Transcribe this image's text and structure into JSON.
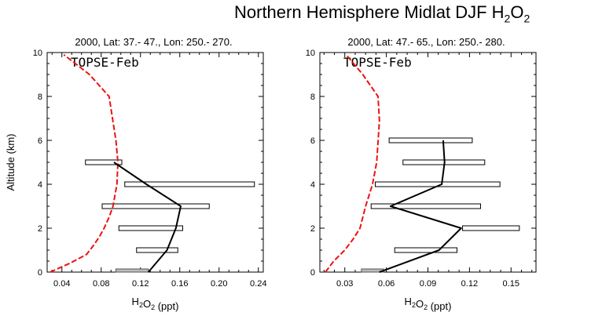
{
  "page_title": {
    "main": "Northern Hemisphere Midlat DJF H",
    "sub": "2",
    "tail": "O",
    "sub2": "2"
  },
  "chart_data": [
    {
      "type": "line",
      "title": "2000, Lat: 37.- 47., Lon: 250.- 270.",
      "legend_label": "TOPSE-Feb",
      "ylabel": "Altitude (km)",
      "xlabel": {
        "main": "H",
        "sub": "2",
        "mid": "O",
        "sub2": "2",
        "tail": " (ppt)"
      },
      "xlim": [
        0.025,
        0.245
      ],
      "ylim": [
        0,
        10
      ],
      "xticks": [
        0.04,
        0.08,
        0.12,
        0.16,
        0.2,
        0.24
      ],
      "xtick_labels": [
        "0.04",
        "0.08",
        "0.12",
        "0.16",
        "0.20",
        "0.24"
      ],
      "yticks": [
        0,
        2,
        4,
        6,
        8,
        10
      ],
      "ytick_labels": [
        "0",
        "2",
        "4",
        "6",
        "8",
        "10"
      ],
      "series": [
        {
          "name": "model",
          "style": "dashed",
          "color": "#ee1111",
          "x": [
            0.028,
            0.048,
            0.065,
            0.072,
            0.078,
            0.083,
            0.088,
            0.092,
            0.096,
            0.097,
            0.095,
            0.088,
            0.068,
            0.042
          ],
          "y": [
            0,
            0.4,
            0.8,
            1.2,
            1.6,
            2.0,
            2.5,
            3.0,
            4.0,
            5.0,
            6.0,
            8.0,
            9.0,
            9.9
          ]
        },
        {
          "name": "observations",
          "style": "solid",
          "color": "#000000",
          "x": [
            0.128,
            0.147,
            0.156,
            0.161,
            0.126,
            0.093
          ],
          "y": [
            0,
            1,
            2,
            3,
            4,
            5
          ]
        }
      ],
      "ranges": [
        {
          "y": 0,
          "min": 0.095,
          "max": 0.128
        },
        {
          "y": 1,
          "min": 0.116,
          "max": 0.158
        },
        {
          "y": 2,
          "min": 0.098,
          "max": 0.163
        },
        {
          "y": 3,
          "min": 0.081,
          "max": 0.19
        },
        {
          "y": 4,
          "min": 0.104,
          "max": 0.236
        },
        {
          "y": 5,
          "min": 0.064,
          "max": 0.101
        }
      ]
    },
    {
      "type": "line",
      "title": "2000, Lat: 47.- 65., Lon: 250.- 280.",
      "legend_label": "TOPSE-Feb",
      "ylabel": "",
      "xlabel": {
        "main": "H",
        "sub": "2",
        "mid": "O",
        "sub2": "2",
        "tail": " (ppt)"
      },
      "xlim": [
        0.012,
        0.168
      ],
      "ylim": [
        0,
        10
      ],
      "xticks": [
        0.03,
        0.06,
        0.09,
        0.12,
        0.15
      ],
      "xtick_labels": [
        "0.03",
        "0.06",
        "0.09",
        "0.12",
        "0.15"
      ],
      "yticks": [
        0,
        2,
        4,
        6,
        8,
        10
      ],
      "ytick_labels": [
        "0",
        "2",
        "4",
        "6",
        "8",
        "10"
      ],
      "series": [
        {
          "name": "model",
          "style": "dashed",
          "color": "#ee1111",
          "x": [
            0.016,
            0.022,
            0.03,
            0.036,
            0.041,
            0.045,
            0.05,
            0.053,
            0.055,
            0.054,
            0.043,
            0.031
          ],
          "y": [
            0,
            0.5,
            1.0,
            1.5,
            2.0,
            3.0,
            4.0,
            5.0,
            6.9,
            8.0,
            9.0,
            9.9
          ]
        },
        {
          "name": "observations",
          "style": "solid",
          "color": "#000000",
          "x": [
            0.055,
            0.098,
            0.114,
            0.063,
            0.1,
            0.102,
            0.101
          ],
          "y": [
            0,
            1,
            2,
            3,
            4,
            5,
            6
          ]
        }
      ],
      "ranges": [
        {
          "y": 0,
          "min": 0.042,
          "max": 0.058
        },
        {
          "y": 1,
          "min": 0.066,
          "max": 0.111
        },
        {
          "y": 2,
          "min": 0.115,
          "max": 0.156
        },
        {
          "y": 3,
          "min": 0.049,
          "max": 0.128
        },
        {
          "y": 4,
          "min": 0.052,
          "max": 0.142
        },
        {
          "y": 5,
          "min": 0.072,
          "max": 0.131
        },
        {
          "y": 6,
          "min": 0.062,
          "max": 0.122
        }
      ]
    }
  ]
}
